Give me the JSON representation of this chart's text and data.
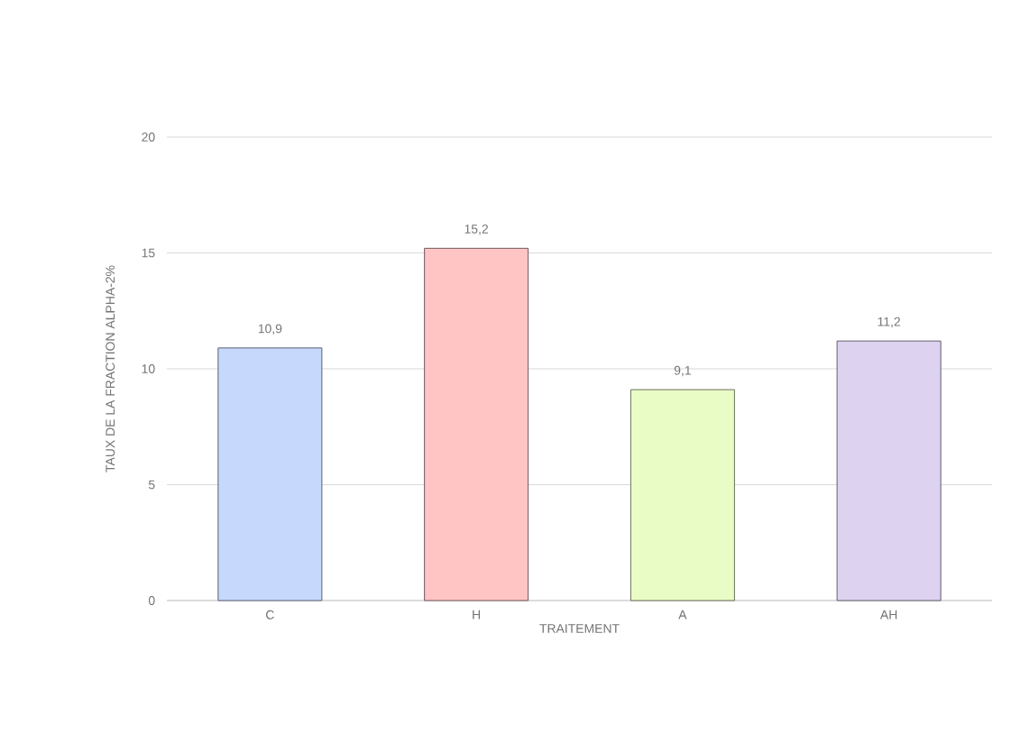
{
  "chart_data": {
    "type": "bar",
    "categories": [
      "C",
      "H",
      "A",
      "AH"
    ],
    "values": [
      10.9,
      15.2,
      9.1,
      11.2
    ],
    "colors": [
      "#c6d9fd",
      "#ffc4c4",
      "#eafcc6",
      "#ddd2ef"
    ],
    "value_labels": [
      "10,9",
      "15,2",
      "9,1",
      "11,2"
    ],
    "xlabel": "TRAITEMENT",
    "ylabel": "TAUX DE LA FRACTION ALPHA-2%",
    "ylim": [
      0,
      20
    ],
    "yticks": [
      0,
      5,
      10,
      15,
      20
    ],
    "grid": "y"
  }
}
